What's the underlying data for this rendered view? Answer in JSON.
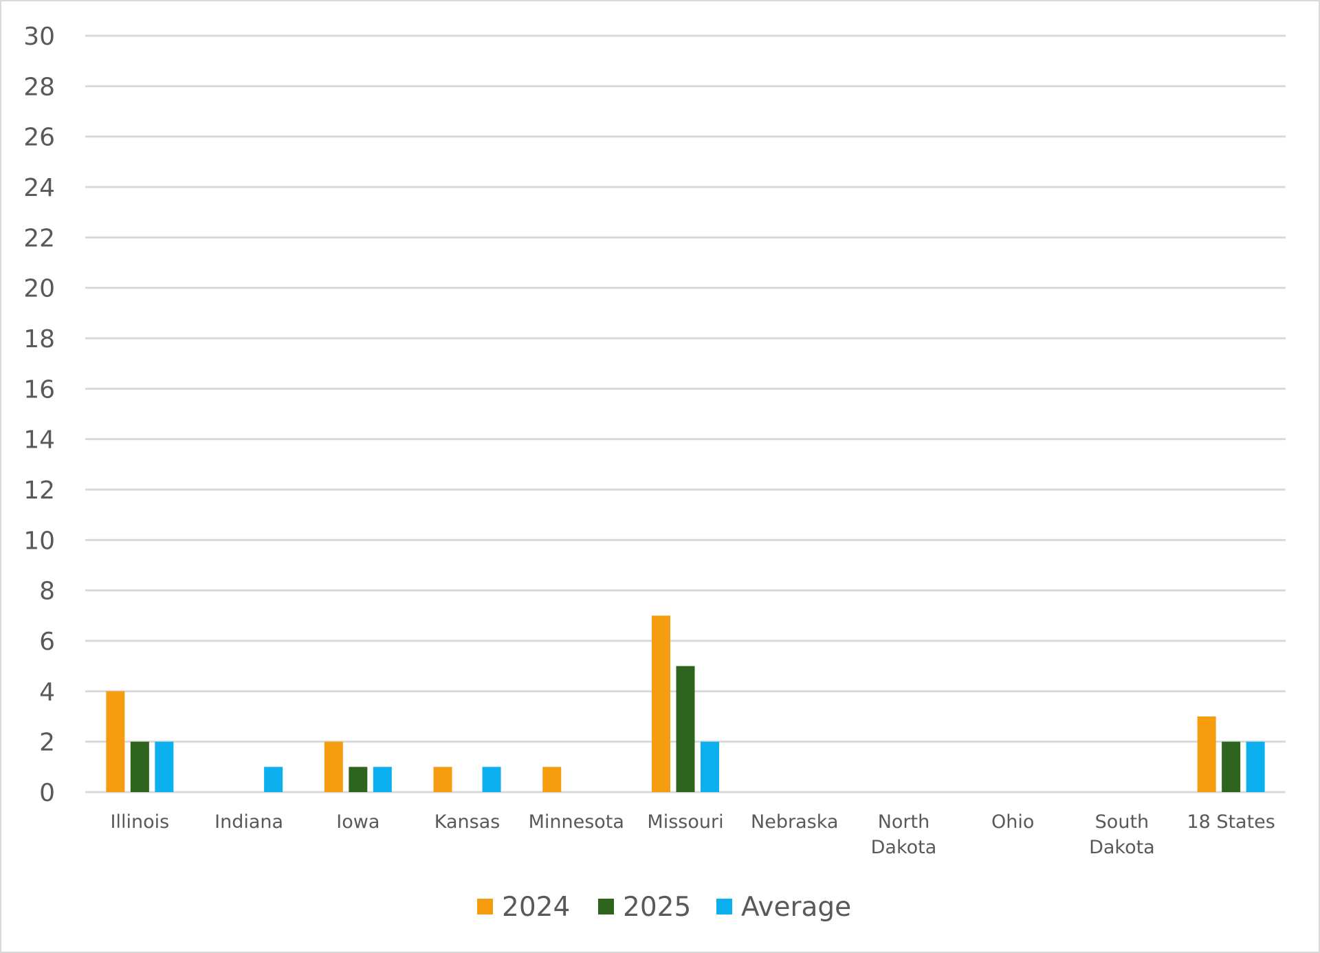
{
  "chart_data": {
    "type": "bar",
    "categories": [
      "Illinois",
      "Indiana",
      "Iowa",
      "Kansas",
      "Minnesota",
      "Missouri",
      "Nebraska",
      "North Dakota",
      "Ohio",
      "South Dakota",
      "18 States"
    ],
    "series": [
      {
        "name": "2024",
        "color": "#f59c0f",
        "values": [
          4,
          0,
          2,
          1,
          1,
          7,
          0,
          0,
          0,
          0,
          3
        ]
      },
      {
        "name": "2025",
        "color": "#2e641d",
        "values": [
          2,
          0,
          1,
          0,
          0,
          5,
          0,
          0,
          0,
          0,
          2
        ]
      },
      {
        "name": "Average",
        "color": "#0cb0ef",
        "values": [
          2,
          1,
          1,
          1,
          0,
          2,
          0,
          0,
          0,
          0,
          2
        ]
      }
    ],
    "ylim": [
      0,
      30
    ],
    "y_ticks": [
      0,
      2,
      4,
      6,
      8,
      10,
      12,
      14,
      16,
      18,
      20,
      22,
      24,
      26,
      28,
      30
    ],
    "grid": true,
    "legend_position": "bottom",
    "title": "",
    "xlabel": "",
    "ylabel": ""
  }
}
